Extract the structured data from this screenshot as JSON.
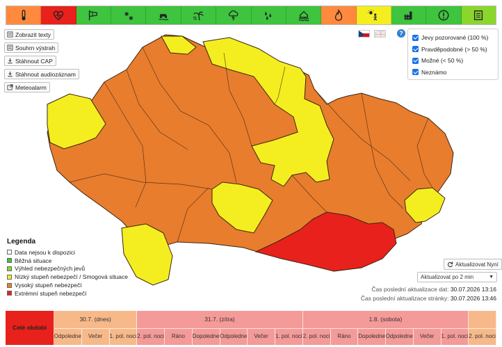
{
  "top_bar": {
    "categories": [
      {
        "id": "temperature",
        "icon": "thermometer-icon",
        "color": "#ff8a3d"
      },
      {
        "id": "health",
        "icon": "heart-pulse-icon",
        "color": "#e8211c"
      },
      {
        "id": "wind",
        "icon": "windsock-icon",
        "color": "#3ec43e"
      },
      {
        "id": "snow",
        "icon": "snowflakes-icon",
        "color": "#3ec43e"
      },
      {
        "id": "road",
        "icon": "car-skid-icon",
        "color": "#3ec43e"
      },
      {
        "id": "storm",
        "icon": "palm-storm-icon",
        "color": "#3ec43e"
      },
      {
        "id": "thunderstorm",
        "icon": "cloud-lightning-icon",
        "color": "#3ec43e"
      },
      {
        "id": "rain",
        "icon": "raindrops-icon",
        "color": "#3ec43e"
      },
      {
        "id": "flood",
        "icon": "flood-house-icon",
        "color": "#3ec43e"
      },
      {
        "id": "fire",
        "icon": "flame-icon",
        "color": "#ff8a3d"
      },
      {
        "id": "heat",
        "icon": "sun-person-icon",
        "color": "#f4ee20"
      },
      {
        "id": "smog",
        "icon": "factory-icon",
        "color": "#3ec43e"
      },
      {
        "id": "warning",
        "icon": "exclamation-circle-icon",
        "color": "#3ec43e"
      },
      {
        "id": "info",
        "icon": "document-icon",
        "color": "#8ad62c"
      }
    ]
  },
  "buttons": {
    "show_texts": "Zobrazit texty",
    "summary": "Souhrn výstrah",
    "download_cap": "Stáhnout CAP",
    "download_audio": "Stáhnout audiozáznam",
    "meteoalarm": "Meteoalarm"
  },
  "filters": [
    {
      "label": "Jevy pozorované (100 %)",
      "checked": true
    },
    {
      "label": "Pravděpodobné (> 50 %)",
      "checked": true
    },
    {
      "label": "Možné (< 50 %)",
      "checked": true
    },
    {
      "label": "Neznámo",
      "checked": true
    }
  ],
  "help": {
    "label": "?"
  },
  "legend": {
    "title": "Legenda",
    "items": [
      {
        "label": "Data nejsou k dispozici",
        "color": "#ffffff"
      },
      {
        "label": "Běžná situace",
        "color": "#3ec43e"
      },
      {
        "label": "Výhled nebezpečných jevů",
        "color": "#8ad62c"
      },
      {
        "label": "Nízký stupeň nebezpečí / Smogová situace",
        "color": "#f4ee20"
      },
      {
        "label": "Vysoký stupeň nebezpečí",
        "color": "#e87d2e"
      },
      {
        "label": "Extrémní stupeň nebezpečí",
        "color": "#e8211c"
      }
    ]
  },
  "controls": {
    "refresh_now": "Aktualizovat Nyní",
    "refresh_interval": "Aktualizovat po 2 min"
  },
  "times": {
    "data_label": "Čas poslední aktualizace dat:",
    "data_value": "30.07.2026 13:16",
    "page_label": "Čas poslední aktualizace stránky:",
    "page_value": "30.07.2026 13:46"
  },
  "timeline": {
    "whole_period": "Celé období",
    "days": [
      {
        "label": "30.7. (dnes)"
      },
      {
        "label": "31.7. (zítra)"
      },
      {
        "label": "1.8. (sobota)"
      }
    ],
    "periods": [
      "Odpoledne",
      "Večer",
      "1. pol. noci",
      "2. pol. noci",
      "Ráno",
      "Dopoledne",
      "Odpoledne",
      "Večer",
      "1. pol. noci",
      "2. pol. noci",
      "Ráno",
      "Dopoledne",
      "Odpoledne",
      "Večer",
      "1. pol. noci",
      "2. pol. noci"
    ],
    "colors": {
      "extreme": "#e8211c",
      "high": "#f7b98a",
      "extreme_light": "#f49a98"
    }
  }
}
